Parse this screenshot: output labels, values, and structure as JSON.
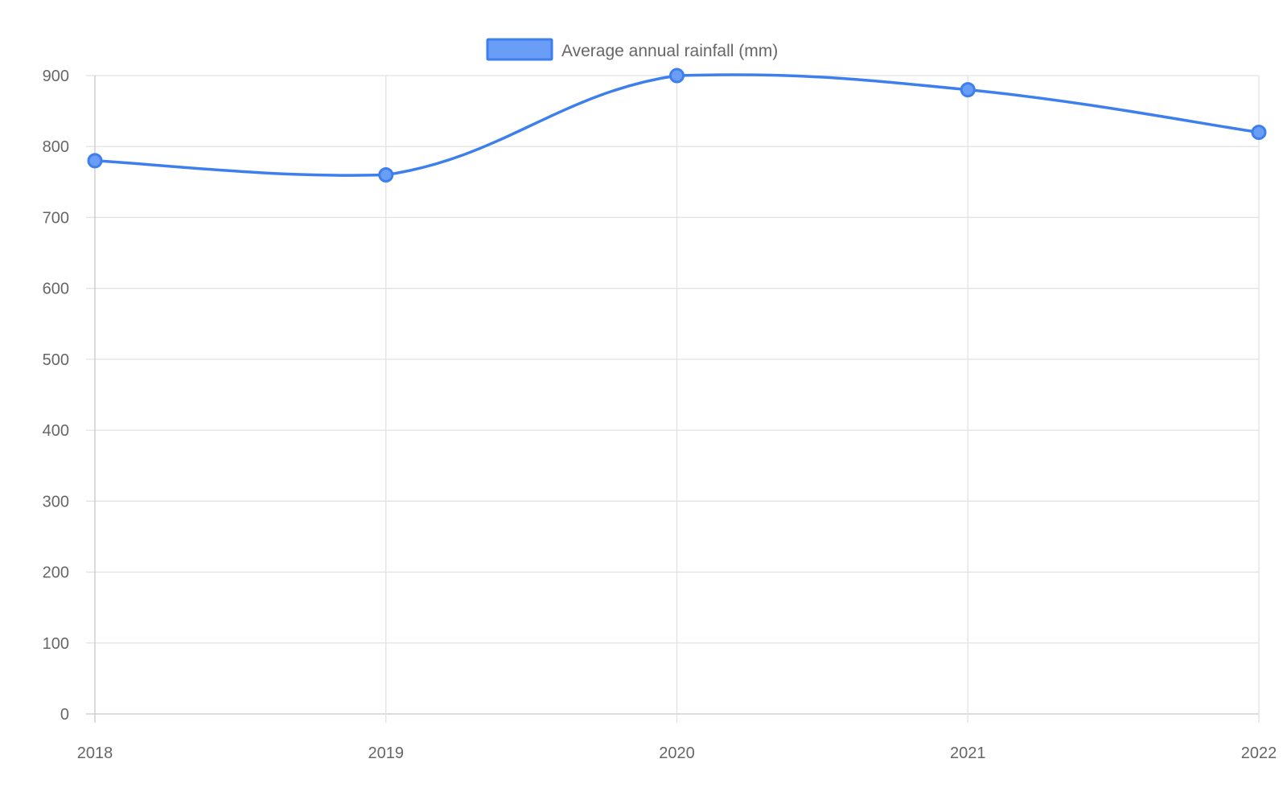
{
  "chart_data": {
    "type": "line",
    "categories": [
      "2018",
      "2019",
      "2020",
      "2021",
      "2022"
    ],
    "series": [
      {
        "name": "Average annual rainfall (mm)",
        "values": [
          780,
          760,
          900,
          880,
          820
        ],
        "color": "#3d7fec",
        "fill_color": "#6a9df5"
      }
    ],
    "ylim": [
      0,
      900
    ],
    "yticks": [
      0,
      100,
      200,
      300,
      400,
      500,
      600,
      700,
      800,
      900
    ],
    "grid": true,
    "legend": "top-center",
    "xlabel": "",
    "ylabel": ""
  },
  "colors": {
    "grid": "#e2e2e2",
    "axis": "#c8c8c8",
    "text": "#666666"
  }
}
